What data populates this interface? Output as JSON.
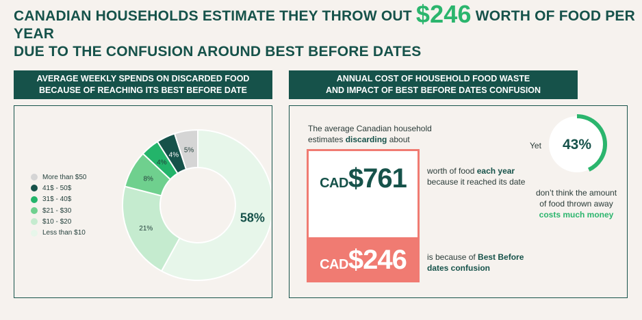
{
  "headline": {
    "before": "CANADIAN HOUSEHOLDS ESTIMATE THEY THROW OUT ",
    "amount": "$246",
    "after_line1": " WORTH OF FOOD PER YEAR",
    "line2": "DUE TO THE CONFUSION AROUND BEST BEFORE DATES"
  },
  "left_panel": {
    "title_line1": "AVERAGE WEEKLY SPENDS ON DISCARDED FOOD",
    "title_line2": "BECAUSE OF REACHING ITS BEST BEFORE DATE"
  },
  "right_panel": {
    "title_line1": "ANNUAL COST OF HOUSEHOLD FOOD WASTE",
    "title_line2": "AND IMPACT OF BEST BEFORE DATES CONFUSION",
    "intro_line1": "The average Canadian household",
    "intro_line2_pre": "estimates ",
    "intro_line2_bold": "discarding",
    "intro_line2_post": " about",
    "total_currency": "CAD",
    "total_amount": "$761",
    "total_desc_line1_pre": "worth of food ",
    "total_desc_line1_bold": "each year",
    "total_desc_line2": "because it reached its date",
    "confusion_currency": "CAD",
    "confusion_amount": "$246",
    "confusion_desc_line1_pre": "is because of ",
    "confusion_desc_line1_bold": "Best Before",
    "confusion_desc_line2_bold": "dates confusion",
    "gauge_prefix": "Yet",
    "gauge_value": 43,
    "gauge_label": "43%",
    "gauge_desc_line1": "don’t think the amount",
    "gauge_desc_line2": "of food thrown away",
    "gauge_desc_line3_bold": "costs much money"
  },
  "colors": {
    "dark_green": "#16524a",
    "accent_green": "#2bb56d",
    "coral": "#f07b72",
    "background": "#f6f2ee"
  },
  "chart_data": {
    "type": "pie",
    "donut": true,
    "title": "AVERAGE WEEKLY SPENDS ON DISCARDED FOOD BECAUSE OF REACHING ITS BEST BEFORE DATE",
    "categories": [
      "Less than $10",
      "$10 - $20",
      "$21 - $30",
      "31$ - 40$",
      "41$ - 50$",
      "More than $50"
    ],
    "values": [
      58,
      21,
      8,
      4,
      4,
      5
    ],
    "labels": [
      "58%",
      "21%",
      "8%",
      "4%",
      "4%",
      "5%"
    ],
    "colors": [
      "#e7f6ea",
      "#c5ebcf",
      "#6fd08e",
      "#23b46a",
      "#16524a",
      "#d5d5d5"
    ],
    "legend_order": [
      "More than $50",
      "41$ - 50$",
      "31$ - 40$",
      "$21 - $30",
      "$10 - $20",
      "Less than $10"
    ],
    "legend_colors": [
      "#d5d5d5",
      "#16524a",
      "#23b46a",
      "#6fd08e",
      "#c5ebcf",
      "#e7f6ea"
    ],
    "legend_position": "left"
  }
}
